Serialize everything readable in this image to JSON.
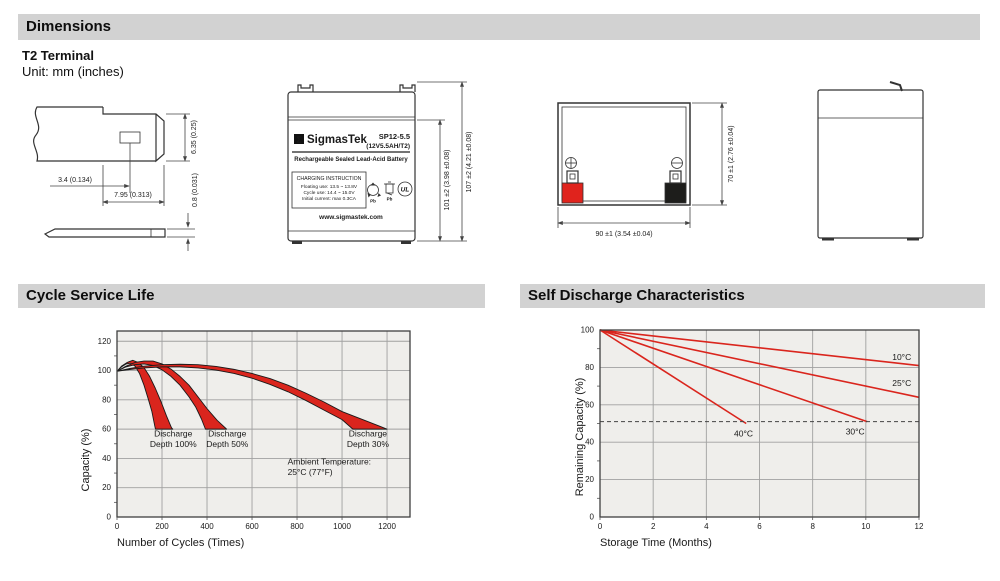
{
  "sections": {
    "dimensions": "Dimensions",
    "cycle": "Cycle Service Life",
    "self_discharge": "Self Discharge Characteristics"
  },
  "terminal_block": {
    "title": "T2 Terminal",
    "unit": "Unit: mm (inches)",
    "dims": {
      "width_small": "3.4 (0.134)",
      "width_large": "7.95 (0.313)",
      "height": "6.35 (0.25)",
      "thickness": "0.8 (0.031)"
    }
  },
  "front_view": {
    "brand_sigma": "Σ",
    "brand": "SigmasTek",
    "model": "SP12-5.5",
    "spec": "(12V5.5AH/T2)",
    "subtitle": "Rechargeable Sealed Lead-Acid Battery",
    "charging_title": "CHARGING INSTRUCTION",
    "charging_lines": [
      "Floating use: 13.5 ~ 13.8V",
      "Cycle use: 14.4 ~ 15.0V",
      "Initial current: max 0.3CA"
    ],
    "pb_recycle": "Pb",
    "pb_trash": "Pb",
    "ul_mark": "UL",
    "website": "www.sigmastek.com",
    "dim_inner": "101 ±2 (3.98 ±0.08)",
    "dim_outer": "107 ±2 (4.21 ±0.08)"
  },
  "top_view": {
    "dim_width": "90 ±1 (3.54 ±0.04)",
    "dim_height": "70 ±1 (2.76 ±0.04)"
  },
  "colors": {
    "bar_bg": "#d2d2d2",
    "red": "#da251d",
    "plot_bg": "#efeeeb",
    "grid": "#a0a0a0",
    "plot_border": "#3f3f3f",
    "ink": "#1a1a1a",
    "terminal_red": "#e0231d",
    "terminal_black": "#1d1d1b"
  },
  "chart_data": [
    {
      "type": "area",
      "title": "Cycle Service Life",
      "xlabel": "Number of Cycles (Times)",
      "ylabel": "Capacity (%)",
      "xlim": [
        0,
        1302
      ],
      "ylim": [
        0,
        127
      ],
      "x_ticks": [
        0,
        200,
        400,
        600,
        800,
        1000,
        1200
      ],
      "y_ticks": [
        0,
        20,
        40,
        60,
        80,
        100,
        120
      ],
      "y_minor_step": 10,
      "grid": true,
      "bands": [
        {
          "name": "Discharge Depth 100%",
          "outer": [
            [
              0,
              99.5
            ],
            [
              20,
              103
            ],
            [
              45,
              105.5
            ],
            [
              70,
              107
            ],
            [
              95,
              105.5
            ],
            [
              120,
              102
            ],
            [
              145,
              96
            ],
            [
              170,
              88
            ],
            [
              195,
              79
            ],
            [
              220,
              69
            ],
            [
              242,
              61
            ],
            [
              248,
              60
            ]
          ],
          "inner": [
            [
              0,
              99.5
            ],
            [
              20,
              102.5
            ],
            [
              40,
              104.5
            ],
            [
              60,
              105
            ],
            [
              80,
              103
            ],
            [
              100,
              98
            ],
            [
              120,
              90
            ],
            [
              140,
              80
            ],
            [
              155,
              72
            ],
            [
              168,
              62
            ],
            [
              171,
              60
            ]
          ]
        },
        {
          "name": "Discharge Depth 50%",
          "outer": [
            [
              0,
              99.5
            ],
            [
              40,
              103
            ],
            [
              80,
              105.5
            ],
            [
              120,
              106.5
            ],
            [
              160,
              106.5
            ],
            [
              200,
              104.5
            ],
            [
              240,
              101
            ],
            [
              280,
              96
            ],
            [
              320,
              90
            ],
            [
              360,
              82
            ],
            [
              400,
              74
            ],
            [
              445,
              66
            ],
            [
              487,
              60
            ]
          ],
          "inner": [
            [
              0,
              99.5
            ],
            [
              40,
              102.5
            ],
            [
              80,
              104
            ],
            [
              120,
              104.5
            ],
            [
              160,
              103.5
            ],
            [
              200,
              100.5
            ],
            [
              240,
              96
            ],
            [
              280,
              90
            ],
            [
              320,
              82
            ],
            [
              350,
              75
            ],
            [
              375,
              67
            ],
            [
              393,
              60
            ]
          ]
        },
        {
          "name": "Discharge Depth 30%",
          "outer": [
            [
              0,
              99.5
            ],
            [
              60,
              101.5
            ],
            [
              120,
              103
            ],
            [
              200,
              104
            ],
            [
              280,
              104.3
            ],
            [
              360,
              104
            ],
            [
              440,
              102.8
            ],
            [
              520,
              100.8
            ],
            [
              600,
              98
            ],
            [
              680,
              94.5
            ],
            [
              760,
              90
            ],
            [
              840,
              84.5
            ],
            [
              920,
              78.5
            ],
            [
              1000,
              72
            ],
            [
              1100,
              66
            ],
            [
              1200,
              60
            ]
          ],
          "inner": [
            [
              0,
              99.5
            ],
            [
              60,
              100.8
            ],
            [
              120,
              101.8
            ],
            [
              200,
              102.5
            ],
            [
              280,
              102.5
            ],
            [
              360,
              101.8
            ],
            [
              440,
              100.3
            ],
            [
              520,
              98
            ],
            [
              600,
              94.8
            ],
            [
              680,
              90.5
            ],
            [
              760,
              85.5
            ],
            [
              840,
              79.5
            ],
            [
              920,
              73
            ],
            [
              1000,
              66.5
            ],
            [
              1048,
              60
            ]
          ]
        }
      ],
      "annotations": [
        {
          "lines": [
            "Discharge",
            "Depth 100%"
          ],
          "x": 250,
          "y": 55,
          "anchor": "middle"
        },
        {
          "lines": [
            "Discharge",
            "Depth 50%"
          ],
          "x": 490,
          "y": 55,
          "anchor": "middle"
        },
        {
          "lines": [
            "Discharge",
            "Depth 30%"
          ],
          "x": 1115,
          "y": 55,
          "anchor": "middle"
        },
        {
          "lines": [
            "Ambient Temperature:",
            "25°C (77°F)"
          ],
          "x": 758,
          "y": 36,
          "anchor": "start"
        }
      ]
    },
    {
      "type": "line",
      "title": "Self Discharge Characteristics",
      "xlabel": "Storage Time (Months)",
      "ylabel": "Remaining Capacity (%)",
      "xlim": [
        0,
        12
      ],
      "ylim": [
        0,
        100
      ],
      "x_ticks": [
        0,
        2,
        4,
        6,
        8,
        10,
        12
      ],
      "y_ticks": [
        0,
        20,
        40,
        60,
        80,
        100
      ],
      "y_minor_step": 10,
      "grid": true,
      "series": [
        {
          "name": "10°C",
          "points": [
            [
              0,
              100
            ],
            [
              12,
              81
            ]
          ]
        },
        {
          "name": "25°C",
          "points": [
            [
              0,
              100
            ],
            [
              12,
              64
            ]
          ]
        },
        {
          "name": "30°C",
          "points": [
            [
              0,
              100
            ],
            [
              10.05,
              51
            ]
          ]
        },
        {
          "name": "40°C",
          "points": [
            [
              0,
              100
            ],
            [
              5.5,
              50
            ]
          ]
        }
      ],
      "threshold": {
        "y": 51,
        "x1": 0,
        "x2": 12
      },
      "annotations": [
        {
          "lines": [
            "10°C"
          ],
          "x": 11.35,
          "y": 84,
          "anchor": "middle"
        },
        {
          "lines": [
            "25°C"
          ],
          "x": 11.35,
          "y": 70,
          "anchor": "middle"
        },
        {
          "lines": [
            "40°C"
          ],
          "x": 5.4,
          "y": 43,
          "anchor": "middle"
        },
        {
          "lines": [
            "30°C"
          ],
          "x": 9.6,
          "y": 44,
          "anchor": "middle"
        }
      ]
    }
  ]
}
